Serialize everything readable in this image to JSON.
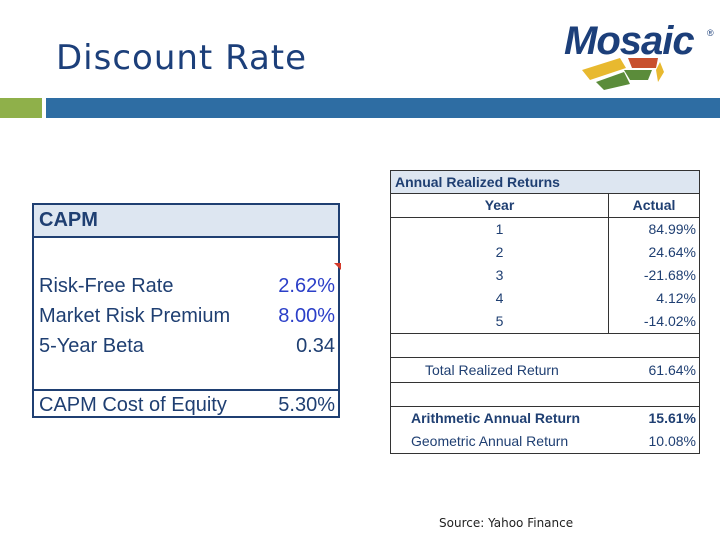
{
  "slide": {
    "title": "Discount Rate",
    "source": "Source: Yahoo Finance"
  },
  "logo": {
    "text": "Mosaic",
    "mark": "®",
    "colors": [
      "#1c3f7a",
      "#e8b92f",
      "#5b8c3a",
      "#c8502e"
    ]
  },
  "capm": {
    "header": "CAPM",
    "rows": [
      {
        "label": "Risk-Free Rate",
        "value": "2.62%"
      },
      {
        "label": "Market Risk Premium",
        "value": "8.00%"
      },
      {
        "label": "5-Year Beta",
        "value": "0.34"
      }
    ],
    "result": {
      "label": "CAPM Cost of Equity",
      "value": "5.30%"
    }
  },
  "annual_returns": {
    "title": "Annual Realized Returns",
    "columns": [
      "Year",
      "Actual"
    ],
    "rows": [
      {
        "year": "1",
        "actual": "84.99%"
      },
      {
        "year": "2",
        "actual": "24.64%"
      },
      {
        "year": "3",
        "actual": "-21.68%"
      },
      {
        "year": "4",
        "actual": "4.12%"
      },
      {
        "year": "5",
        "actual": "-14.02%"
      }
    ],
    "total": {
      "label": "Total Realized Return",
      "value": "61.64%"
    },
    "arithmetic": {
      "label": "Arithmetic Annual Return",
      "value": "15.61%"
    },
    "geometric": {
      "label": "Geometric Annual Return",
      "value": "10.08%"
    }
  }
}
